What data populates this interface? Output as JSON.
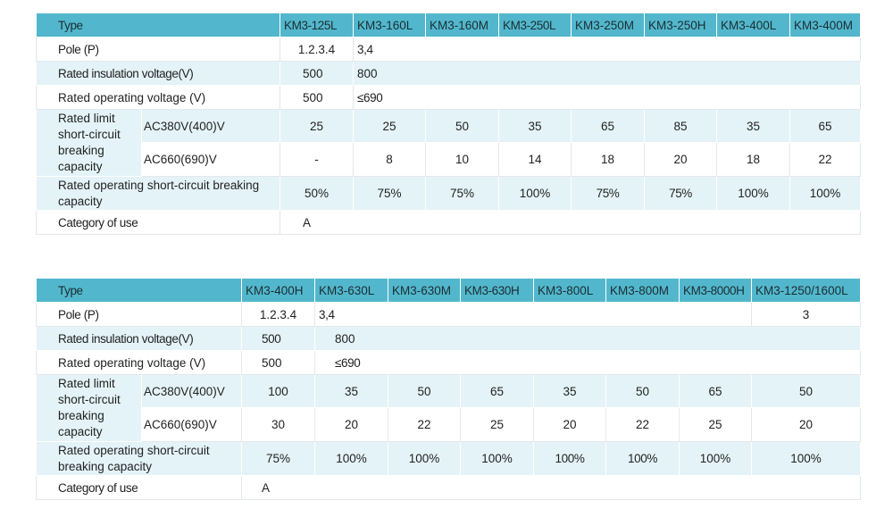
{
  "table1": {
    "header": [
      "Type",
      "KM3-125L",
      "KM3-160L",
      "KM3-160M",
      "KM3-250L",
      "KM3-250M",
      "KM3-250H",
      "KM3-400L",
      "KM3-400M"
    ],
    "pole": {
      "label": "Pole (P)",
      "v1": "1.2.3.4",
      "v2": "3,4"
    },
    "insulation": {
      "label": "Rated insulation voltage(V)",
      "v1": "500",
      "v2": "800"
    },
    "operating": {
      "label": "Rated operating voltage (V)",
      "v1": "500",
      "v2": "≤690"
    },
    "limit": {
      "label": "Rated limit short-circuit breaking capacity",
      "ac380": {
        "label": "AC380V(400)V",
        "values": [
          "25",
          "25",
          "50",
          "35",
          "65",
          "85",
          "35",
          "65"
        ]
      },
      "ac660": {
        "label": "AC660(690)V",
        "values": [
          "-",
          "8",
          "10",
          "14",
          "18",
          "20",
          "18",
          "22"
        ]
      }
    },
    "service": {
      "label": "Rated operating short-circuit breaking capacity",
      "values": [
        "50%",
        "75%",
        "75%",
        "100%",
        "75%",
        "75%",
        "100%",
        "100%"
      ]
    },
    "category": {
      "label": "Category of use",
      "value": "A"
    }
  },
  "table2": {
    "header": [
      "Type",
      "KM3-400H",
      "KM3-630L",
      "KM3-630M",
      "KM3-630H",
      "KM3-800L",
      "KM3-800M",
      "KM3-8000H",
      "KM3-1250/1600L"
    ],
    "pole": {
      "label": "Pole (P)",
      "v1": "1.2.3.4",
      "v2": "3,4",
      "v3": "3"
    },
    "insulation": {
      "label": "Rated insulation voltage(V)",
      "v1": "500",
      "v2": "800"
    },
    "operating": {
      "label": "Rated operating voltage (V)",
      "v1": "500",
      "v2": "≤690"
    },
    "limit": {
      "label": "Rated limit short-circuit breaking capacity",
      "ac380": {
        "label": "AC380V(400)V",
        "values": [
          "100",
          "35",
          "50",
          "65",
          "35",
          "50",
          "65",
          "50"
        ]
      },
      "ac660": {
        "label": "AC660(690)V",
        "values": [
          "30",
          "20",
          "22",
          "25",
          "20",
          "22",
          "25",
          "20"
        ]
      }
    },
    "service": {
      "label": "Rated operating short-circuit breaking capacity",
      "values": [
        "75%",
        "100%",
        "100%",
        "100%",
        "100%",
        "100%",
        "100%",
        "100%"
      ]
    },
    "category": {
      "label": "Category of use",
      "value": "A"
    }
  }
}
